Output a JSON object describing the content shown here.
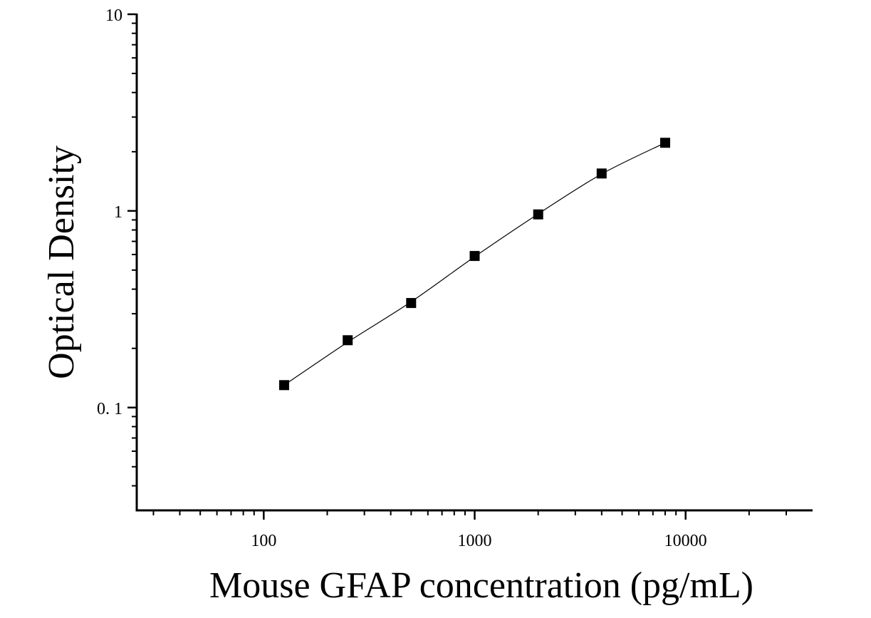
{
  "chart_data": {
    "type": "scatter",
    "title": "",
    "xlabel": "Mouse GFAP concentration (pg/mL)",
    "ylabel": "Optical Density",
    "x_scale": "log",
    "y_scale": "log",
    "xlim": [
      25,
      40000
    ],
    "ylim": [
      0.03,
      10
    ],
    "x_ticks": [
      {
        "value": 100,
        "label": "100"
      },
      {
        "value": 1000,
        "label": "1000"
      },
      {
        "value": 10000,
        "label": "10000"
      }
    ],
    "y_ticks": [
      {
        "value": 0.1,
        "label": "0. 1"
      },
      {
        "value": 1,
        "label": "1"
      },
      {
        "value": 10,
        "label": "10"
      }
    ],
    "grid": false,
    "legend": "none",
    "series": [
      {
        "marker": "square",
        "color": "#000000",
        "x": [
          125,
          250,
          500,
          1000,
          2000,
          4000,
          8000
        ],
        "y": [
          0.13,
          0.22,
          0.34,
          0.59,
          0.96,
          1.55,
          2.22
        ]
      }
    ],
    "fit_curve": {
      "color": "#000000",
      "x": [
        125,
        250,
        500,
        1000,
        2000,
        4000,
        8000
      ],
      "y": [
        0.13,
        0.215,
        0.345,
        0.585,
        0.965,
        1.54,
        2.22
      ]
    }
  }
}
